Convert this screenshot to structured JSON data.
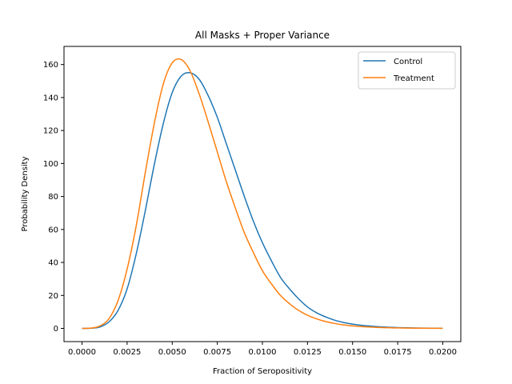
{
  "chart_data": {
    "type": "line",
    "title": "All Masks + Proper Variance",
    "xlabel": "Fraction of Seropositivity",
    "ylabel": "Probability Density",
    "xlim": [
      -0.001,
      0.021
    ],
    "ylim": [
      -8,
      171
    ],
    "xticks": [
      0.0,
      0.0025,
      0.005,
      0.0075,
      0.01,
      0.0125,
      0.015,
      0.0175,
      0.02
    ],
    "xtick_labels": [
      "0.0000",
      "0.0025",
      "0.0050",
      "0.0075",
      "0.0100",
      "0.0125",
      "0.0150",
      "0.0175",
      "0.0200"
    ],
    "yticks": [
      0,
      20,
      40,
      60,
      80,
      100,
      120,
      140,
      160
    ],
    "ytick_labels": [
      "0",
      "20",
      "40",
      "60",
      "80",
      "100",
      "120",
      "140",
      "160"
    ],
    "grid": false,
    "legend_position": "top-right",
    "x": [
      0.0,
      0.0005,
      0.001,
      0.0015,
      0.002,
      0.0025,
      0.003,
      0.0035,
      0.004,
      0.0045,
      0.005,
      0.0055,
      0.006,
      0.0065,
      0.007,
      0.0075,
      0.008,
      0.0085,
      0.009,
      0.0095,
      0.01,
      0.0105,
      0.011,
      0.0115,
      0.012,
      0.0125,
      0.013,
      0.0135,
      0.014,
      0.0145,
      0.015,
      0.0155,
      0.016,
      0.0165,
      0.017,
      0.0175,
      0.018,
      0.0185,
      0.019,
      0.0195,
      0.02
    ],
    "series": [
      {
        "name": "Control",
        "color": "#1f77b4",
        "values": [
          0,
          0.1,
          0.9,
          4,
          11,
          24,
          45,
          71,
          99,
          124,
          143,
          153,
          155,
          151,
          141,
          128,
          112,
          96,
          80,
          65,
          52,
          41,
          31,
          24,
          18,
          13,
          9.5,
          7,
          5,
          3.6,
          2.6,
          1.9,
          1.4,
          1.0,
          0.7,
          0.5,
          0.35,
          0.25,
          0.18,
          0.12,
          0.08
        ]
      },
      {
        "name": "Treatment",
        "color": "#ff7f0e",
        "values": [
          0,
          0.2,
          1.5,
          6,
          17,
          36,
          62,
          94,
          124,
          148,
          161,
          163,
          156,
          142,
          125,
          107,
          89,
          73,
          58,
          46,
          35,
          27,
          20,
          15,
          11,
          8,
          5.8,
          4.2,
          3.0,
          2.1,
          1.5,
          1.1,
          0.8,
          0.55,
          0.4,
          0.28,
          0.2,
          0.14,
          0.1,
          0.07,
          0.05
        ]
      }
    ]
  }
}
